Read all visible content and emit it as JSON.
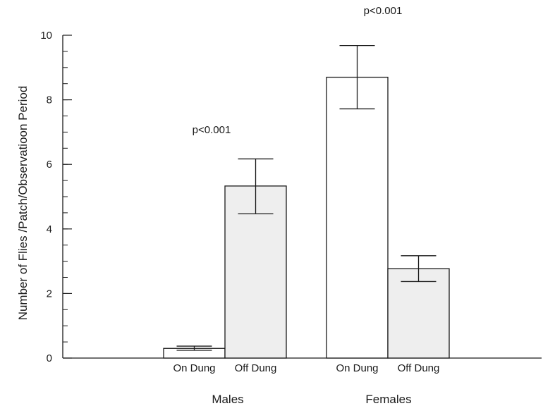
{
  "chart_data": {
    "type": "bar",
    "title": "",
    "xlabel": "",
    "ylabel": "Number of Flies /Patch/Observatioon Period",
    "ylim": [
      0,
      10
    ],
    "y_major_ticks": [
      0,
      2,
      4,
      6,
      8,
      10
    ],
    "y_minor_step": 0.5,
    "grid": false,
    "groups": [
      {
        "label": "Males",
        "annotation": "p<0.001",
        "bars": [
          {
            "label": "On Dung",
            "value": 0.3,
            "error_low": 0.24,
            "error_high": 0.37,
            "fill": "#ffffff"
          },
          {
            "label": "Off Dung",
            "value": 5.33,
            "error_low": 4.47,
            "error_high": 6.17,
            "fill": "#eeeeee"
          }
        ]
      },
      {
        "label": "Females",
        "annotation": "p<0.001",
        "bars": [
          {
            "label": "On Dung",
            "value": 8.7,
            "error_low": 7.72,
            "error_high": 9.68,
            "fill": "#ffffff"
          },
          {
            "label": "Off Dung",
            "value": 2.77,
            "error_low": 2.37,
            "error_high": 3.17,
            "fill": "#eeeeee"
          }
        ]
      }
    ]
  }
}
